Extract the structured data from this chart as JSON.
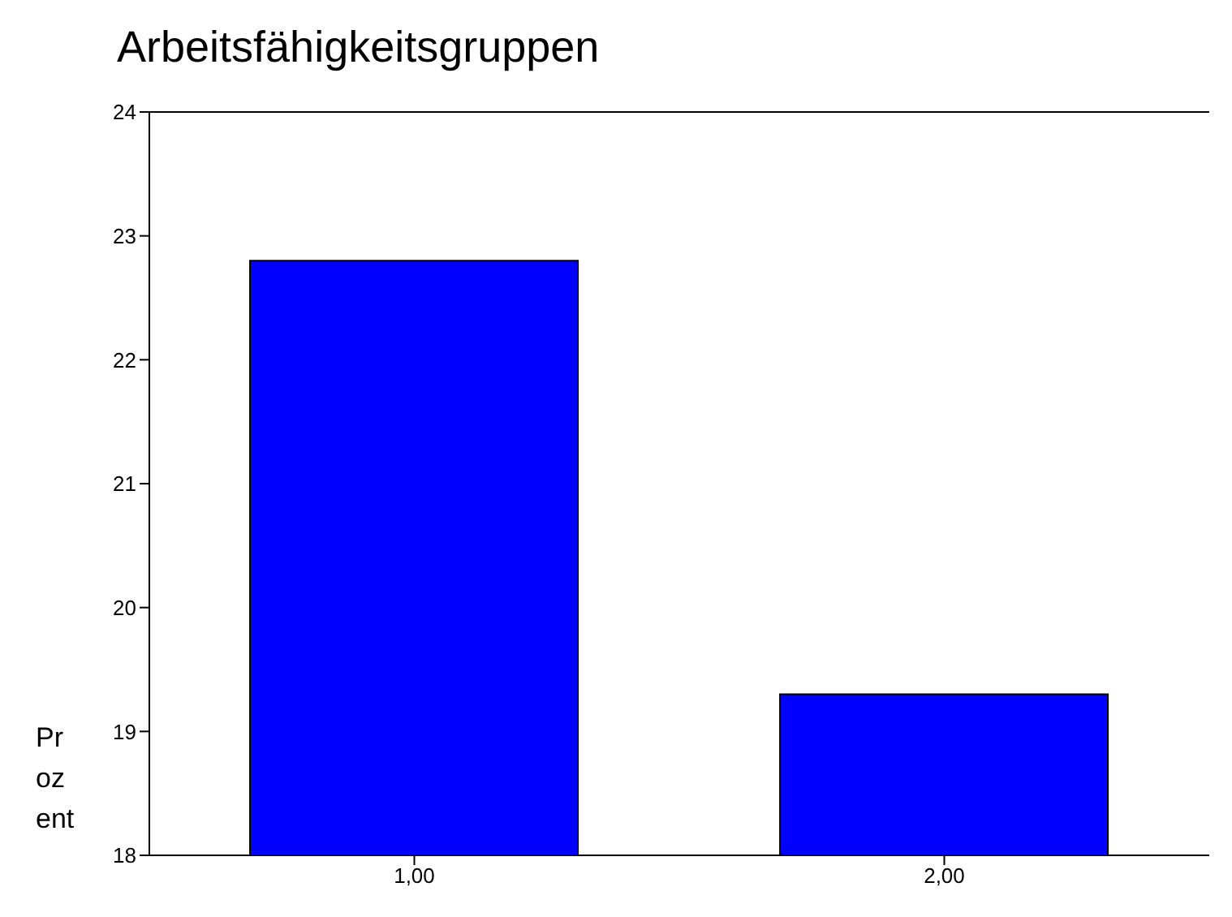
{
  "chart_data": {
    "type": "bar",
    "title": "Arbeitsfähigkeitsgruppen",
    "ylabel": "Prozent",
    "categories": [
      "1,00",
      "2,00"
    ],
    "values": [
      22.8,
      19.3
    ],
    "color": "#0000ff",
    "ylim": [
      18,
      24
    ],
    "yticks": [
      18,
      19,
      20,
      21,
      22,
      23,
      24
    ],
    "grid": false
  }
}
